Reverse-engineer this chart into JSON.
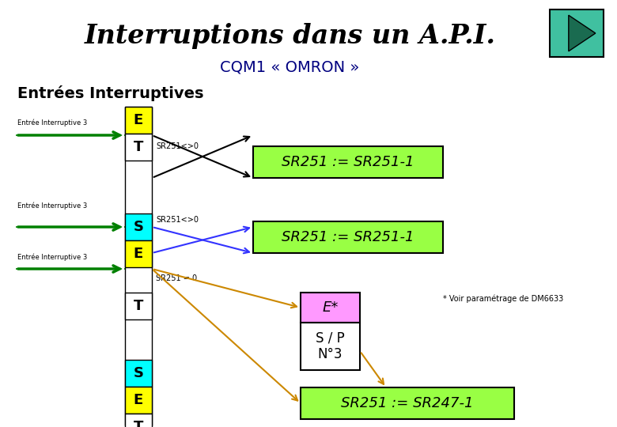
{
  "title": "Interruptions dans un A.P.I.",
  "subtitle": "CQM1 « OMRON »",
  "section_label": "Entrées Interruptives",
  "bg_color": "#ffffff",
  "title_color": "#000000",
  "subtitle_color": "#000080",
  "nav_bg": "#40c0a0",
  "nav_tri": "#1a6b50",
  "yellow": "#ffff00",
  "cyan": "#00ffff",
  "green_box": "#99ff44",
  "pink": "#ff99ff",
  "orange_arrow": "#cc8800",
  "blue_arrow": "#3333ff",
  "black_arrow": "#000000",
  "green_arrow": "#008000"
}
